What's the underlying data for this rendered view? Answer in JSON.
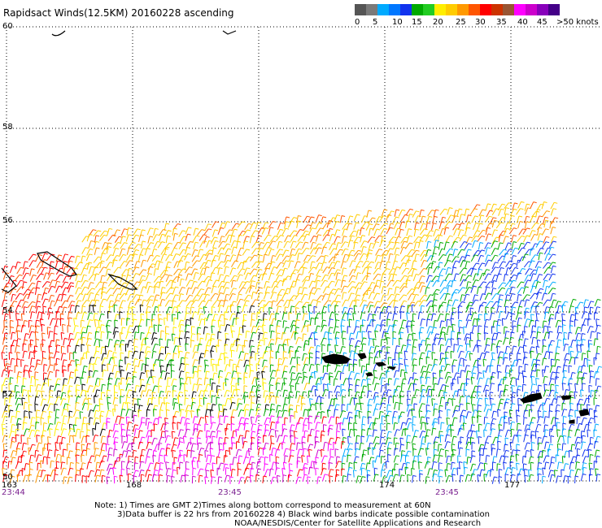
{
  "title": "Rapidsact Winds(12.5KM) 20160228 ascending",
  "legend": {
    "colors": [
      "#555555",
      "#7a7a7a",
      "#00aaff",
      "#0077ff",
      "#1133ee",
      "#00aa00",
      "#22cc22",
      "#ffee00",
      "#ffcc00",
      "#ff9900",
      "#ff5500",
      "#ff0000",
      "#cc3300",
      "#995533",
      "#ff00ff",
      "#cc00cc",
      "#8800bb",
      "#440088"
    ],
    "labels": [
      "0",
      "5",
      "10",
      "15",
      "20",
      "25",
      "30",
      "35",
      "40",
      "45",
      ">50 knots"
    ]
  },
  "map": {
    "lat_labels": [
      "60",
      "58",
      "56",
      "54",
      "52",
      "50"
    ],
    "lon_labels": [
      "163",
      "168",
      "174",
      "177"
    ],
    "time_labels": [
      "23:44",
      "23:45",
      "23:45"
    ]
  },
  "notes": [
    "Note: 1) Times are GMT 2)Times along bottom correspond to measurement at 60N",
    "3)Data buffer is 22 hrs from 20160228 4) Black wind barbs indicate possible contamination",
    "NOAA/NESDIS/Center for Satellite Applications and Research"
  ]
}
